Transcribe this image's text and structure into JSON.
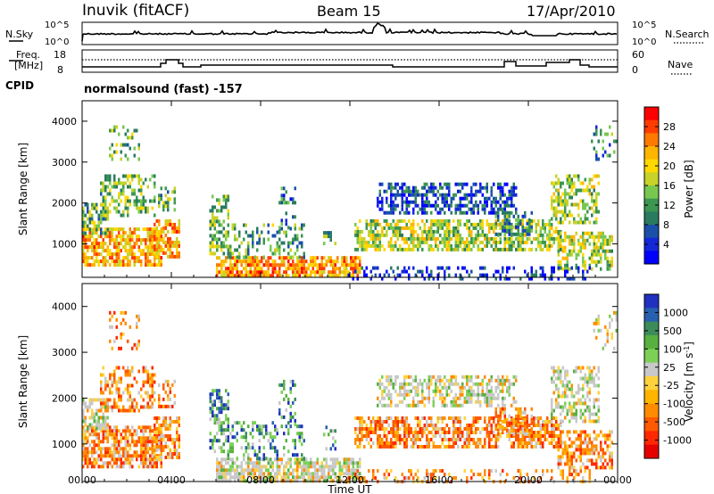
{
  "header": {
    "station": "Inuvik (fitACF)",
    "beam": "Beam 15",
    "date": "17/Apr/2010"
  },
  "top_panels": {
    "nsky_label": "N.Sky",
    "nsky_ticks": [
      "10^5",
      "10^0"
    ],
    "nsearch_label": "N.Search",
    "nsearch_ticks": [
      "10^5",
      "10^0"
    ],
    "freq_label_1": "Freq.",
    "freq_label_2": "[MHz]",
    "freq_ticks": [
      "18",
      "8"
    ],
    "nave_label": "Nave",
    "nave_ticks": [
      "60",
      "0"
    ],
    "cpid_label": "CPID",
    "cpid_value": "normalsound (fast) -157"
  },
  "chart_data": [
    {
      "type": "heatmap",
      "name": "power-panel",
      "ylabel": "Slant Range [km]",
      "xlabel": "",
      "yticks": [
        "1000",
        "2000",
        "3000",
        "4000"
      ],
      "ylim": [
        180,
        4500
      ],
      "colorbar": {
        "label": "Power [dB]",
        "ticks": [
          "28",
          "24",
          "20",
          "16",
          "12",
          "8",
          "4"
        ],
        "colors": [
          "#ff0000",
          "#ff3c00",
          "#ff7a00",
          "#ffb400",
          "#ffd800",
          "#c8d228",
          "#78c850",
          "#3c9650",
          "#2a7a60",
          "#1a50a8",
          "#1428d8",
          "#0000ff"
        ]
      }
    },
    {
      "type": "heatmap",
      "name": "velocity-panel",
      "ylabel": "Slant Range [km]",
      "xlabel": "Time UT",
      "yticks": [
        "1000",
        "2000",
        "3000",
        "4000"
      ],
      "ylim": [
        180,
        4500
      ],
      "xticks": [
        "00:00",
        "04:00",
        "08:00",
        "12:00",
        "16:00",
        "20:00",
        "00:00"
      ],
      "colorbar": {
        "label": "Velocity [m s",
        "ticks": [
          "1000",
          "500",
          "100",
          "25",
          "-25",
          "-100",
          "-500",
          "-1000"
        ],
        "colors": [
          "#2030c0",
          "#2860b0",
          "#3c8c5a",
          "#58b040",
          "#7cd058",
          "#c8c8c8",
          "#ffd23c",
          "#ffb400",
          "#ff8c00",
          "#ff5a00",
          "#ff2800",
          "#e60000"
        ]
      }
    }
  ]
}
